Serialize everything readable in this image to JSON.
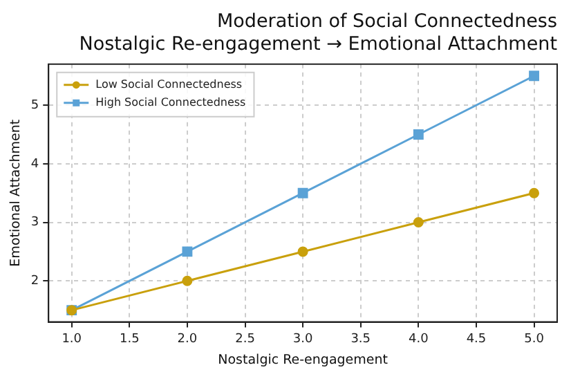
{
  "chart_data": {
    "type": "line",
    "title": "Moderation of Social Connectedness\nNostalgic Re-engagement → Emotional Attachment",
    "xlabel": "Nostalgic Re-engagement",
    "ylabel": "Emotional Attachment",
    "x": [
      1,
      2,
      3,
      4,
      5
    ],
    "series": [
      {
        "name": "Low Social Connectedness",
        "color": "#c9a00c",
        "marker": "circle",
        "values": [
          1.5,
          2,
          2.5,
          3,
          3.5
        ]
      },
      {
        "name": "High Social Connectedness",
        "color": "#5aa2d6",
        "marker": "square",
        "values": [
          1.5,
          2.5,
          3.5,
          4.5,
          5.5
        ]
      }
    ],
    "xlim": [
      0.8,
      5.2
    ],
    "ylim": [
      1.3,
      5.7
    ],
    "xticks": [
      {
        "value": 1,
        "label": "1.0"
      },
      {
        "value": 1.5,
        "label": "1.5"
      },
      {
        "value": 2,
        "label": "2.0"
      },
      {
        "value": 2.5,
        "label": "2.5"
      },
      {
        "value": 3,
        "label": "3.0"
      },
      {
        "value": 3.5,
        "label": "3.5"
      },
      {
        "value": 4,
        "label": "4.0"
      },
      {
        "value": 4.5,
        "label": "4.5"
      },
      {
        "value": 5,
        "label": "5.0"
      }
    ],
    "yticks": [
      2,
      3,
      4,
      5
    ],
    "grid": true,
    "legend": "top left"
  }
}
